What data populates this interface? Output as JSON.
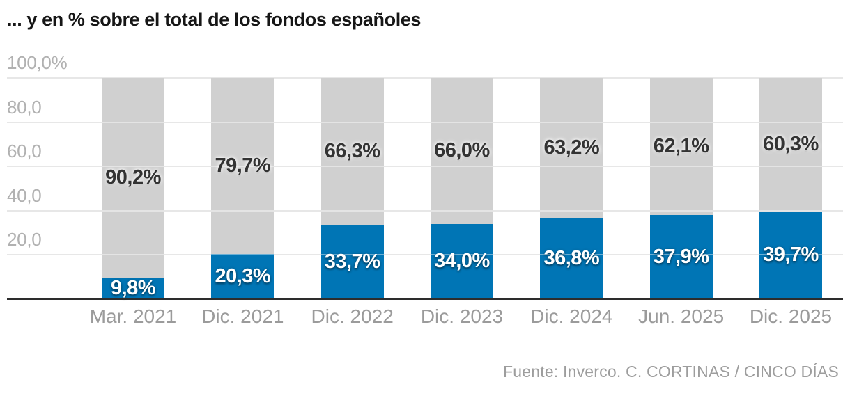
{
  "title": "... y en % sobre el total de los fondos españoles",
  "footer": "Fuente: Inverco. C. CORTINAS / CINCO DÍAS",
  "colors": {
    "blue_segment": "#0075b5",
    "gray_segment": "#d0d0d0",
    "grid": "#e7e7e7",
    "baseline": "#2d2d2d",
    "title_text": "#161616",
    "y_tick_text": "#b1b1b1",
    "x_tick_text": "#9b9b9b",
    "footer_text": "#9d9d9d",
    "label_on_gray": "#333333",
    "label_on_blue": "#ffffff"
  },
  "chart_data": {
    "type": "bar",
    "stacked": true,
    "title": "... y en % sobre el total de los fondos españoles",
    "xlabel": "",
    "ylabel": "",
    "ylim": [
      0,
      100
    ],
    "grid": true,
    "legend": false,
    "categories": [
      "Mar. 2021",
      "Dic. 2021",
      "Dic. 2022",
      "Dic. 2023",
      "Dic. 2024",
      "Jun. 2025",
      "Dic. 2025"
    ],
    "series": [
      {
        "name": "porcentaje-destacado",
        "color": "#0075b5",
        "values": [
          9.8,
          20.3,
          33.7,
          34.0,
          36.8,
          37.9,
          39.7
        ],
        "labels": [
          "9,8%",
          "20,3%",
          "33,7%",
          "34,0%",
          "36,8%",
          "37,9%",
          "39,7%"
        ]
      },
      {
        "name": "resto",
        "color": "#d0d0d0",
        "values": [
          90.2,
          79.7,
          66.3,
          66.0,
          63.2,
          62.1,
          60.3
        ],
        "labels": [
          "90,2%",
          "79,7%",
          "66,3%",
          "66,0%",
          "63,2%",
          "62,1%",
          "60,3%"
        ]
      }
    ],
    "y_ticks": [
      {
        "value": 100,
        "label": "100,0%"
      },
      {
        "value": 80,
        "label": "80,0"
      },
      {
        "value": 60,
        "label": "60,0"
      },
      {
        "value": 40,
        "label": "40,0"
      },
      {
        "value": 20,
        "label": "20,0"
      }
    ]
  }
}
